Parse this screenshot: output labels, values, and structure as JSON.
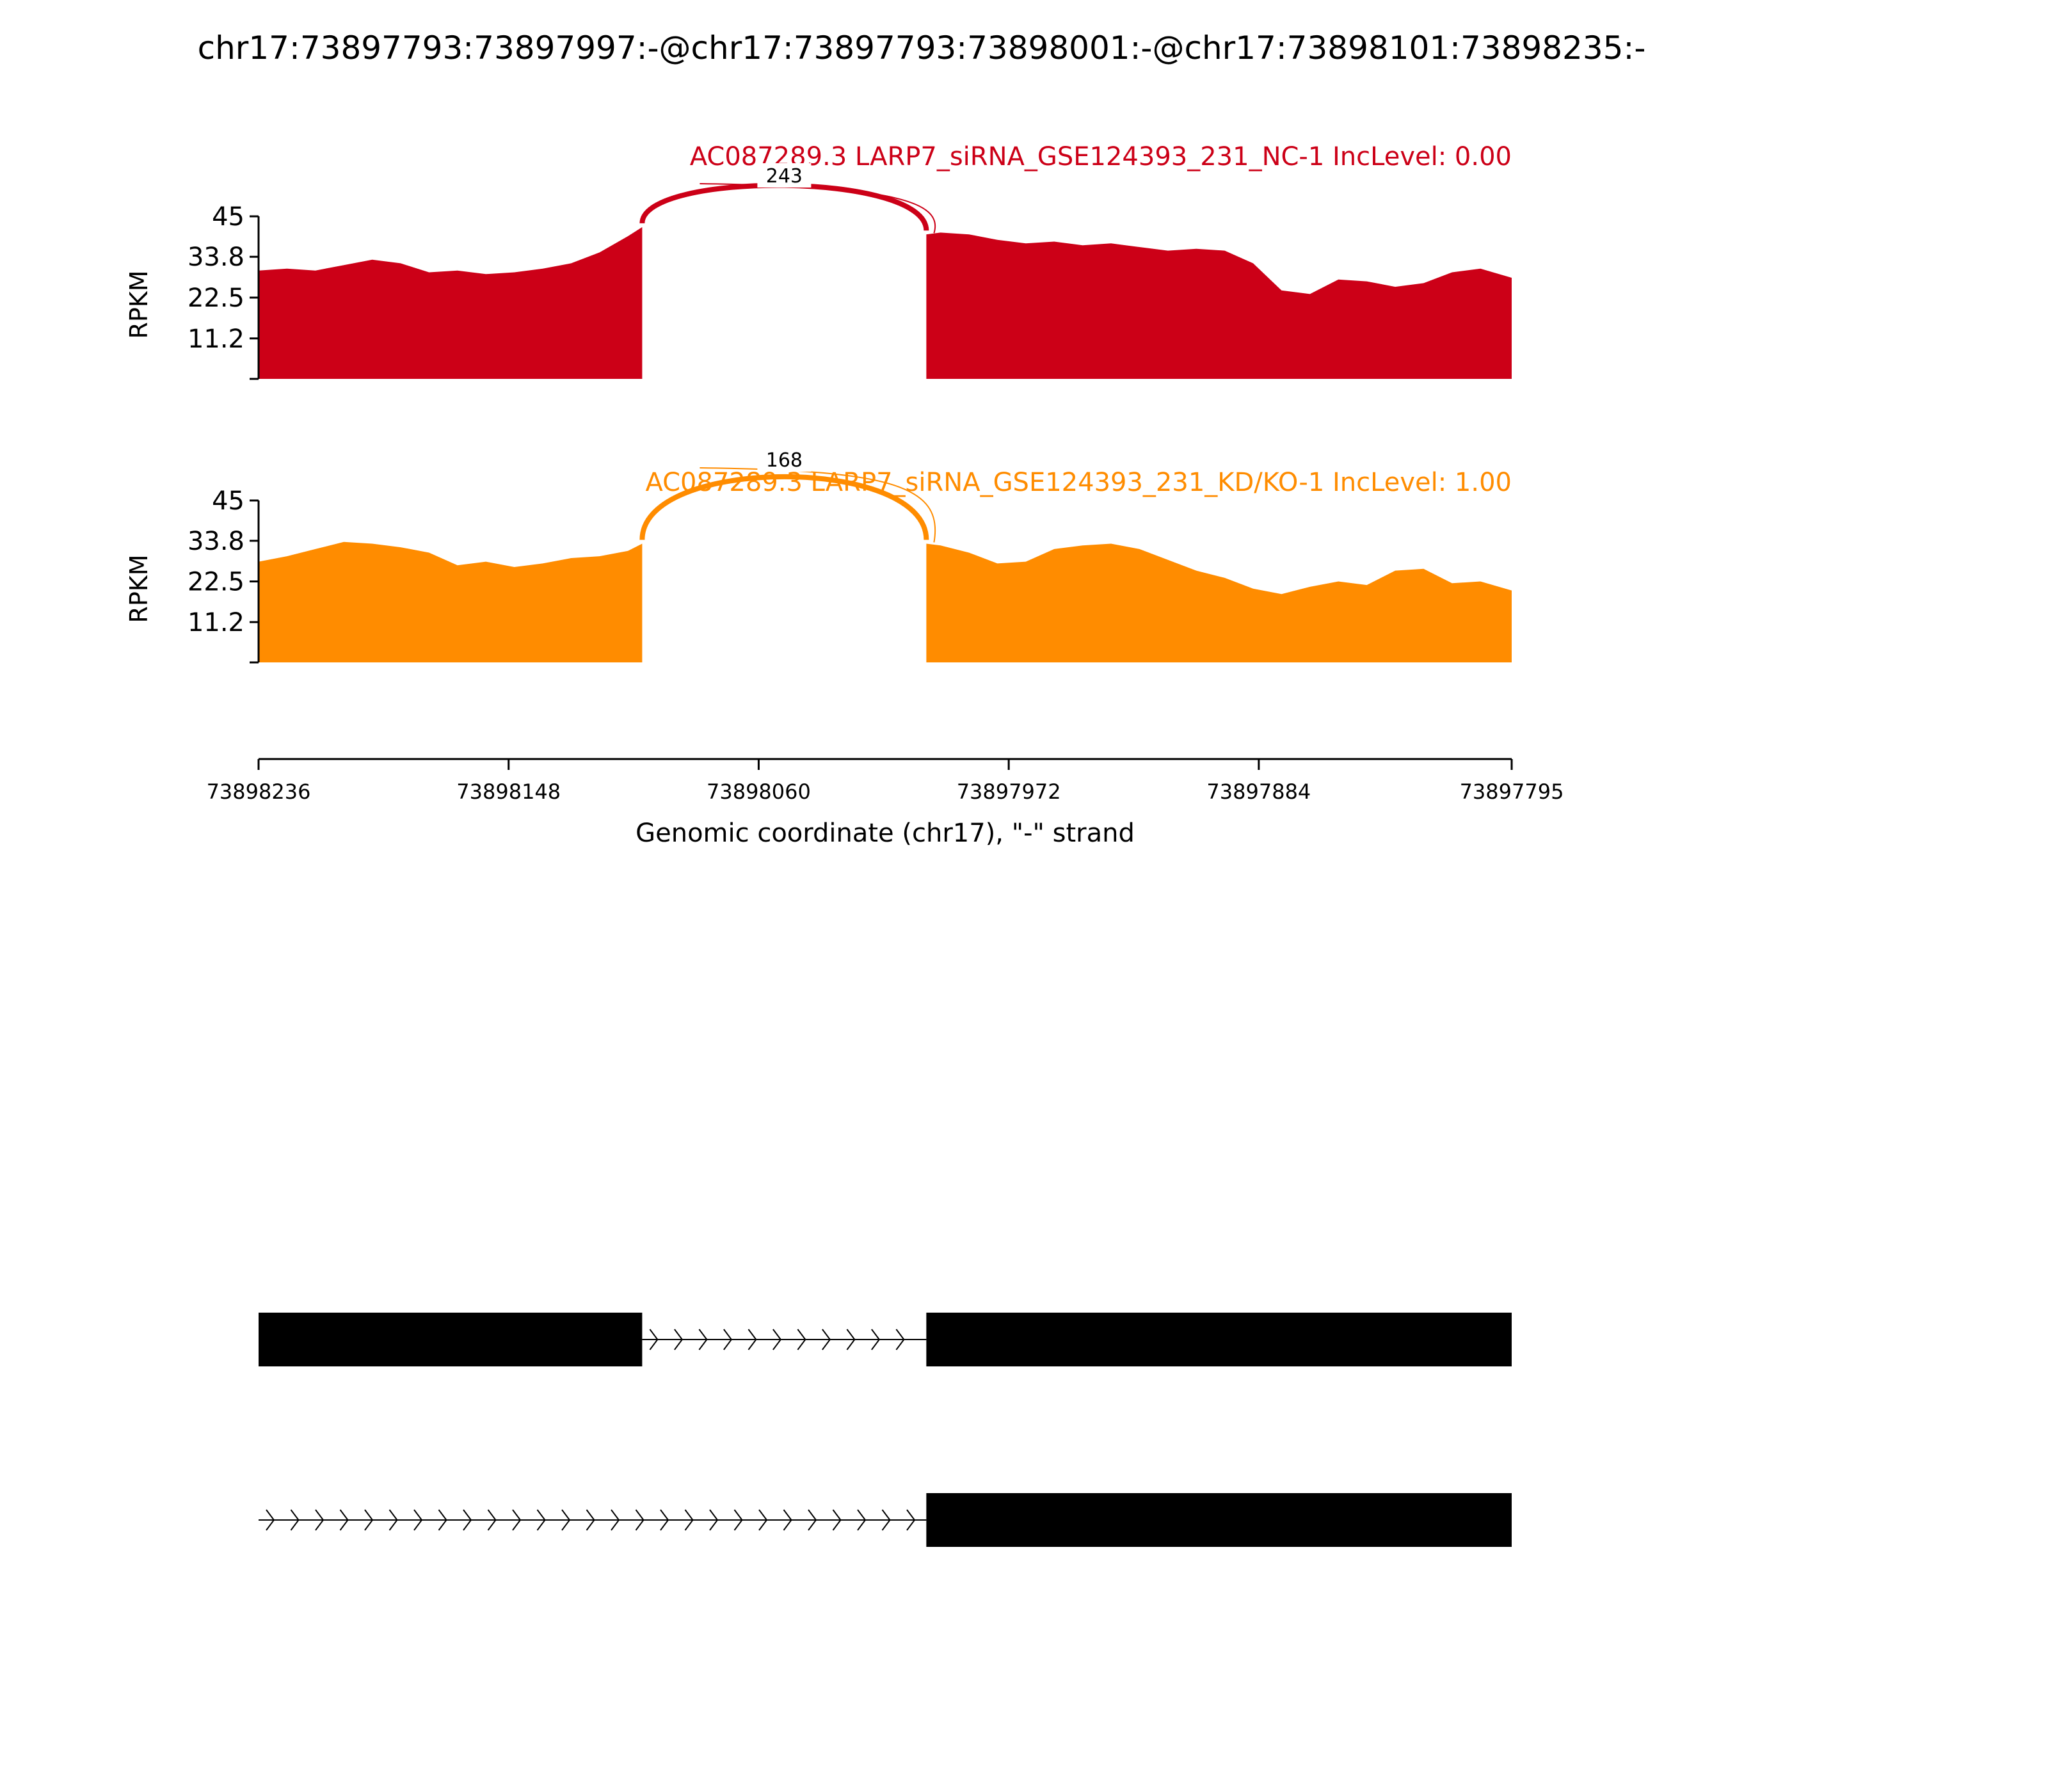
{
  "page_title": "chr17:73897793:73897997:-@chr17:73897793:73898001:-@chr17:73898101:73898235:-",
  "colors": {
    "sample1": "#cc0017",
    "sample2": "#ff8c00",
    "axis": "#000000",
    "gene": "#000000"
  },
  "x_axis": {
    "label": "Genomic coordinate (chr17), \"-\" strand",
    "start": 73898236,
    "end": 73897795,
    "ticks": [
      "73898236",
      "73898148",
      "73898060",
      "73897972",
      "73897884",
      "73897795"
    ]
  },
  "chart_data": [
    {
      "type": "area",
      "title": "AC087289.3 LARP7_siRNA_GSE124393_231_NC-1 IncLevel: 0.00",
      "ylabel": "RPKM",
      "ylim": [
        0,
        45
      ],
      "yticks": [
        "45",
        "33.8",
        "22.5",
        "11.2"
      ],
      "color": "#cc0017",
      "x": [
        73898236,
        73898226,
        73898216,
        73898206,
        73898196,
        73898186,
        73898176,
        73898166,
        73898156,
        73898146,
        73898136,
        73898126,
        73898116,
        73898106,
        73898101,
        73898001,
        73897996,
        73897986,
        73897976,
        73897966,
        73897956,
        73897946,
        73897936,
        73897926,
        73897916,
        73897906,
        73897896,
        73897886,
        73897876,
        73897866,
        73897856,
        73897846,
        73897836,
        73897826,
        73897816,
        73897806,
        73897795
      ],
      "y": [
        30,
        30.5,
        30,
        31.5,
        33,
        32,
        29.5,
        30,
        29,
        29.5,
        30.5,
        32,
        35,
        39.5,
        42,
        40,
        40.5,
        40,
        38.5,
        37.5,
        38,
        37,
        37.5,
        36.5,
        35.5,
        36,
        35.5,
        32,
        24.5,
        23.5,
        27.5,
        27,
        25.5,
        26.5,
        29.5,
        30.5,
        28
      ],
      "junction": {
        "from": 73898101,
        "to": 73898001,
        "count": "243"
      }
    },
    {
      "type": "area",
      "title": "AC087289.3 LARP7_siRNA_GSE124393_231_KD/KO-1 IncLevel: 1.00",
      "ylabel": "RPKM",
      "ylim": [
        0,
        45
      ],
      "yticks": [
        "45",
        "33.8",
        "22.5",
        "11.2"
      ],
      "color": "#ff8c00",
      "x": [
        73898236,
        73898226,
        73898216,
        73898206,
        73898196,
        73898186,
        73898176,
        73898166,
        73898156,
        73898146,
        73898136,
        73898126,
        73898116,
        73898106,
        73898101,
        73898001,
        73897996,
        73897986,
        73897976,
        73897966,
        73897956,
        73897946,
        73897936,
        73897926,
        73897916,
        73897906,
        73897896,
        73897886,
        73897876,
        73897866,
        73897856,
        73897846,
        73897836,
        73897826,
        73897816,
        73897806,
        73897795
      ],
      "y": [
        28,
        29.5,
        31.5,
        33.5,
        33,
        32,
        30.5,
        27,
        28,
        26.5,
        27.5,
        29,
        29.5,
        31,
        33,
        33,
        32.5,
        30.5,
        27.5,
        28,
        31.5,
        32.5,
        33,
        31.5,
        28.5,
        25.5,
        23.5,
        20.5,
        19,
        21,
        22.5,
        21.5,
        25.5,
        26,
        22,
        22.5,
        20
      ],
      "junction": {
        "from": 73898101,
        "to": 73898001,
        "count": "168"
      }
    }
  ],
  "transcripts": [
    {
      "exons": [
        [
          73898236,
          73898101
        ],
        [
          73898001,
          73897795
        ]
      ],
      "intron_start": 73898101,
      "intron_end": 73898001
    },
    {
      "exons": [
        [
          73898001,
          73897795
        ]
      ],
      "intron_start": 73898236,
      "intron_end": 73898001
    }
  ]
}
